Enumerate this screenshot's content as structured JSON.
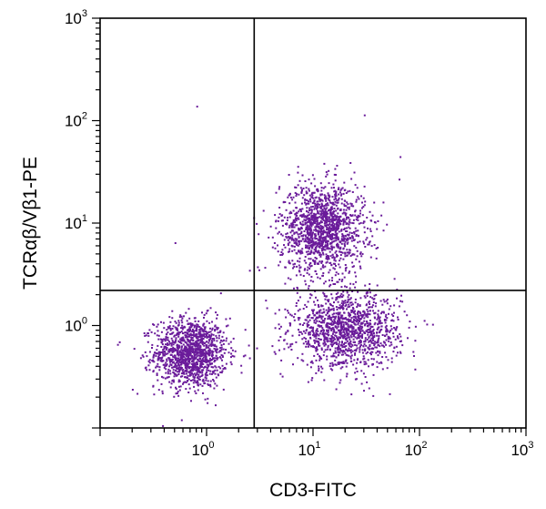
{
  "chart_data": {
    "type": "scatter",
    "title": "",
    "xlabel": "CD3-FITC",
    "ylabel": "TCRαβ/Vβ1-PE",
    "x_scale": "log",
    "y_scale": "log",
    "xlim": [
      0.1,
      1000
    ],
    "ylim": [
      0.1,
      1000
    ],
    "x_ticks": [
      {
        "value": 1,
        "base": "10",
        "exp": "0"
      },
      {
        "value": 10,
        "base": "10",
        "exp": "1"
      },
      {
        "value": 100,
        "base": "10",
        "exp": "2"
      },
      {
        "value": 1000,
        "base": "10",
        "exp": "3"
      }
    ],
    "y_ticks": [
      {
        "value": 1,
        "base": "10",
        "exp": "0"
      },
      {
        "value": 10,
        "base": "10",
        "exp": "1"
      },
      {
        "value": 100,
        "base": "10",
        "exp": "2"
      },
      {
        "value": 1000,
        "base": "10",
        "exp": "3"
      }
    ],
    "quadrant_gates": {
      "x": 2.8,
      "y": 2.2
    },
    "point_color": "#6a1b9a",
    "populations": [
      {
        "center_x": 0.7,
        "center_y": 0.55,
        "spread_log_x": 0.17,
        "spread_log_y": 0.17,
        "count": 1300
      },
      {
        "center_x": 12,
        "center_y": 9,
        "spread_log_x": 0.2,
        "spread_log_y": 0.22,
        "count": 1400
      },
      {
        "center_x": 20,
        "center_y": 0.9,
        "spread_log_x": 0.25,
        "spread_log_y": 0.18,
        "count": 1300
      }
    ],
    "outliers": [
      {
        "x": 0.8,
        "y": 140
      },
      {
        "x": 0.5,
        "y": 6.5
      },
      {
        "x": 30,
        "y": 115
      },
      {
        "x": 65,
        "y": 45
      },
      {
        "x": 2.5,
        "y": 3.5
      },
      {
        "x": 0.15,
        "y": 0.7
      },
      {
        "x": 0.22,
        "y": 0.22
      }
    ]
  }
}
